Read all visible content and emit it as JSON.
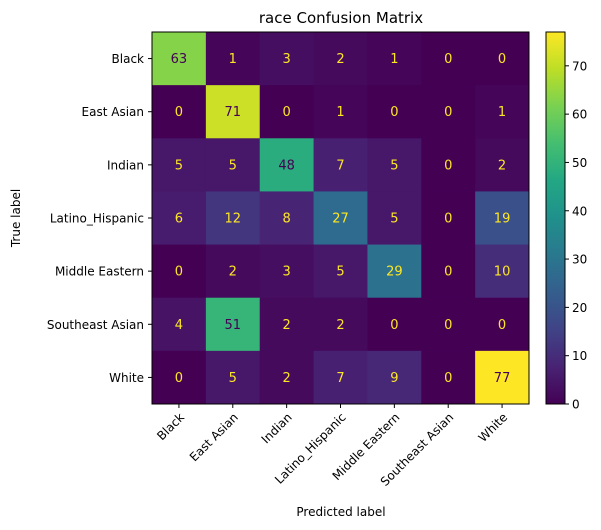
{
  "chart_data": {
    "type": "heatmap",
    "title": "race Confusion Matrix",
    "xlabel": "Predicted label",
    "ylabel": "True label",
    "x_categories": [
      "Black",
      "East Asian",
      "Indian",
      "Latino_Hispanic",
      "Middle Eastern",
      "Southeast Asian",
      "White"
    ],
    "y_categories": [
      "Black",
      "East Asian",
      "Indian",
      "Latino_Hispanic",
      "Middle Eastern",
      "Southeast Asian",
      "White"
    ],
    "matrix": [
      [
        63,
        1,
        3,
        2,
        1,
        0,
        0
      ],
      [
        0,
        71,
        0,
        1,
        0,
        0,
        1
      ],
      [
        5,
        5,
        48,
        7,
        5,
        0,
        2
      ],
      [
        6,
        12,
        8,
        27,
        5,
        0,
        19
      ],
      [
        0,
        2,
        3,
        5,
        29,
        0,
        10
      ],
      [
        4,
        51,
        2,
        2,
        0,
        0,
        0
      ],
      [
        0,
        5,
        2,
        7,
        9,
        0,
        77
      ]
    ],
    "colorbar": {
      "min": 0,
      "max": 77,
      "ticks": [
        0,
        10,
        20,
        30,
        40,
        50,
        60,
        70
      ]
    },
    "colormap": "viridis",
    "text_colors": {
      "on_dark": "#fde725",
      "on_light": "#440154"
    }
  }
}
